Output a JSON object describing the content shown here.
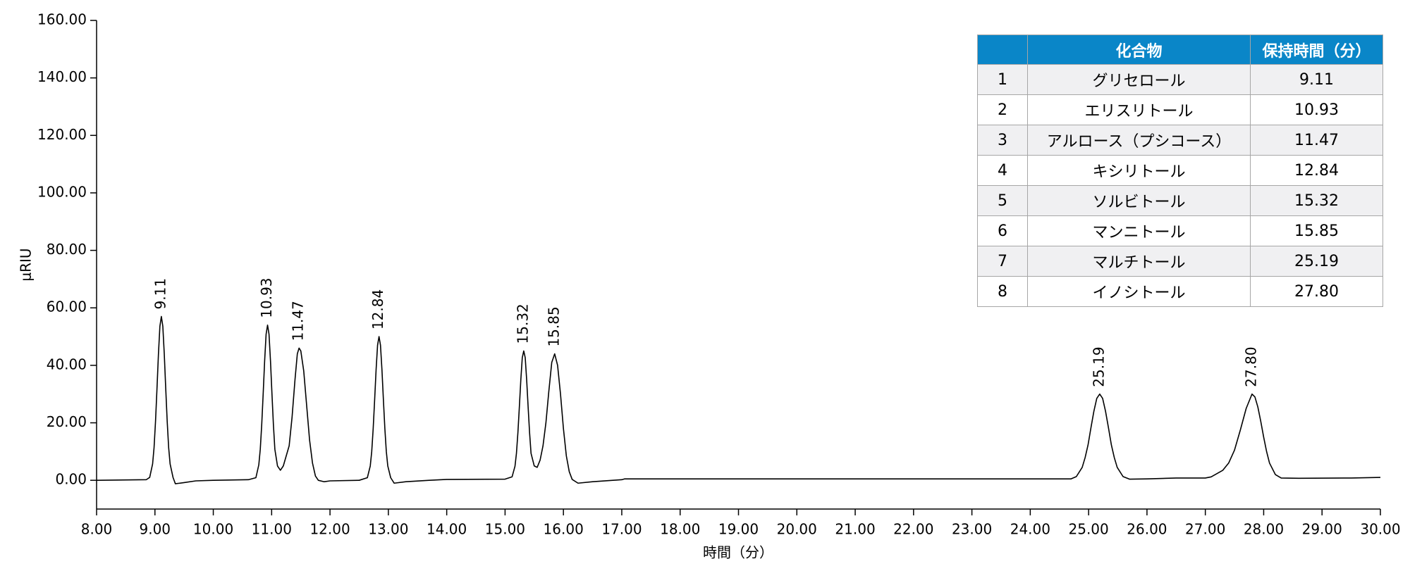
{
  "chart_data": {
    "type": "line",
    "xlabel": "時間（分）",
    "ylabel": "μRIU",
    "color": "#000000",
    "x": [
      8.0,
      8.85,
      8.91,
      8.96,
      8.985,
      9.01,
      9.035,
      9.06,
      9.085,
      9.11,
      9.135,
      9.16,
      9.185,
      9.21,
      9.235,
      9.26,
      9.31,
      9.35,
      9.5,
      9.7,
      10.0,
      10.6,
      10.73,
      10.78,
      10.805,
      10.83,
      10.855,
      10.88,
      10.905,
      10.93,
      10.955,
      10.98,
      11.005,
      11.03,
      11.055,
      11.1,
      11.15,
      11.2,
      11.3,
      11.35,
      11.4,
      11.44,
      11.47,
      11.5,
      11.55,
      11.6,
      11.65,
      11.7,
      11.75,
      11.8,
      11.9,
      12.0,
      12.5,
      12.64,
      12.69,
      12.715,
      12.74,
      12.765,
      12.79,
      12.815,
      12.84,
      12.865,
      12.89,
      12.915,
      12.94,
      12.965,
      12.99,
      13.04,
      13.1,
      13.3,
      13.7,
      14.0,
      15.0,
      15.12,
      15.17,
      15.195,
      15.22,
      15.245,
      15.27,
      15.295,
      15.32,
      15.345,
      15.37,
      15.395,
      15.42,
      15.445,
      15.5,
      15.55,
      15.6,
      15.65,
      15.7,
      15.75,
      15.8,
      15.85,
      15.9,
      15.95,
      16.0,
      16.05,
      16.1,
      16.15,
      16.25,
      16.5,
      17.0,
      17.05,
      24.7,
      24.79,
      24.89,
      24.94,
      24.99,
      25.04,
      25.09,
      25.14,
      25.19,
      25.24,
      25.29,
      25.34,
      25.39,
      25.44,
      25.49,
      25.59,
      25.7,
      26.0,
      26.5,
      27.0,
      27.1,
      27.3,
      27.4,
      27.5,
      27.6,
      27.7,
      27.8,
      27.85,
      27.9,
      27.95,
      28.0,
      28.05,
      28.1,
      28.2,
      28.3,
      28.6,
      29.5,
      30.0
    ],
    "values": [
      0,
      0.2,
      1.0,
      5.7,
      11.4,
      20.5,
      31.9,
      43.9,
      53.6,
      57,
      53.6,
      43.9,
      31.9,
      20.5,
      11.4,
      5.7,
      1.0,
      -1.2,
      -0.8,
      -0.2,
      0,
      0.2,
      0.9,
      5.4,
      10.8,
      19.4,
      30.2,
      41.6,
      50.8,
      54,
      50.8,
      41.6,
      30.2,
      19.4,
      10.8,
      5,
      3.5,
      5,
      12,
      22,
      35,
      44,
      46,
      45,
      38,
      26,
      14,
      6,
      1.5,
      0,
      -0.5,
      -0.2,
      0,
      0.9,
      5,
      10,
      18,
      28,
      38.5,
      47,
      50,
      47,
      38.5,
      28,
      18,
      10,
      5,
      0.9,
      -1,
      -0.5,
      0,
      0.3,
      0.4,
      1.2,
      4.9,
      9.4,
      16.6,
      25.6,
      35,
      42.7,
      45,
      42.7,
      35,
      25.6,
      16.6,
      9.4,
      5,
      4.5,
      7,
      12,
      20,
      31,
      41,
      44,
      40,
      30,
      18,
      8.5,
      3,
      0.3,
      -1,
      -0.5,
      0.2,
      0.5,
      0.5,
      1.3,
      4.5,
      7.9,
      12.3,
      18.3,
      24,
      28.5,
      30,
      28.5,
      24,
      18.3,
      12.3,
      7.9,
      4.5,
      1.3,
      0.4,
      0.5,
      0.8,
      0.8,
      1.2,
      3.5,
      6,
      10.5,
      17.5,
      25,
      30,
      29,
      25.5,
      20.5,
      15,
      10,
      6,
      2,
      0.8,
      0.7,
      0.8,
      1.0
    ],
    "peaks": [
      {
        "x": 9.11,
        "y": 57
      },
      {
        "x": 10.93,
        "y": 54
      },
      {
        "x": 11.47,
        "y": 46
      },
      {
        "x": 12.84,
        "y": 50
      },
      {
        "x": 15.32,
        "y": 45
      },
      {
        "x": 15.85,
        "y": 44
      },
      {
        "x": 25.19,
        "y": 30
      },
      {
        "x": {
          "value": 27.8,
          "label": "27.80"
        },
        "y": 30
      }
    ],
    "xlim": [
      8,
      30
    ],
    "xticks": [
      {
        "value": 8,
        "label": "8.00"
      },
      {
        "value": 9,
        "label": "9.00"
      },
      {
        "value": 10,
        "label": "10.00"
      },
      {
        "value": 11,
        "label": "11.00"
      },
      {
        "value": 12,
        "label": "12.00"
      },
      {
        "value": 13,
        "label": "13.00"
      },
      {
        "value": 14,
        "label": "14.00"
      },
      {
        "value": 15,
        "label": "15.00"
      },
      {
        "value": 16,
        "label": "16.00"
      },
      {
        "value": 17,
        "label": "17.00"
      },
      {
        "value": 18,
        "label": "18.00"
      },
      {
        "value": 19,
        "label": "19.00"
      },
      {
        "value": 20,
        "label": "20.00"
      },
      {
        "value": 21,
        "label": "21.00"
      },
      {
        "value": 22,
        "label": "22.00"
      },
      {
        "value": 23,
        "label": "23.00"
      },
      {
        "value": 24,
        "label": "24.00"
      },
      {
        "value": 25,
        "label": "25.00"
      },
      {
        "value": 26,
        "label": "26.00"
      },
      {
        "value": 27,
        "label": "27.00"
      },
      {
        "value": 28,
        "label": "28.00"
      },
      {
        "value": 29,
        "label": "29.00"
      },
      {
        "value": 30,
        "label": "30.00"
      }
    ],
    "ylim": [
      -10,
      160
    ],
    "yticks": [
      {
        "value": 0,
        "label": "0.00"
      },
      {
        "value": 20,
        "label": "20.00"
      },
      {
        "value": 40,
        "label": "40.00"
      },
      {
        "value": 60,
        "label": "60.00"
      },
      {
        "value": 80,
        "label": "80.00"
      },
      {
        "value": 100,
        "label": "100.00"
      },
      {
        "value": 120,
        "label": "120.00"
      },
      {
        "value": 140,
        "label": "140.00"
      },
      {
        "value": 160,
        "label": "160.00"
      }
    ],
    "grid": false
  },
  "table": {
    "header": [
      "化合物",
      "保持時間（分）"
    ],
    "rows": [
      [
        1,
        "グリセロール",
        "9.11"
      ],
      [
        2,
        "エリスリトール",
        "10.93"
      ],
      [
        3,
        "アルロース（プシコース）",
        "11.47"
      ],
      [
        4,
        "キシリトール",
        "12.84"
      ],
      [
        5,
        "ソルビトール",
        "15.32"
      ],
      [
        6,
        "マンニトール",
        "15.85"
      ],
      [
        7,
        "マルチトール",
        "25.19"
      ],
      [
        8,
        "イノシトール",
        "27.80"
      ]
    ]
  }
}
